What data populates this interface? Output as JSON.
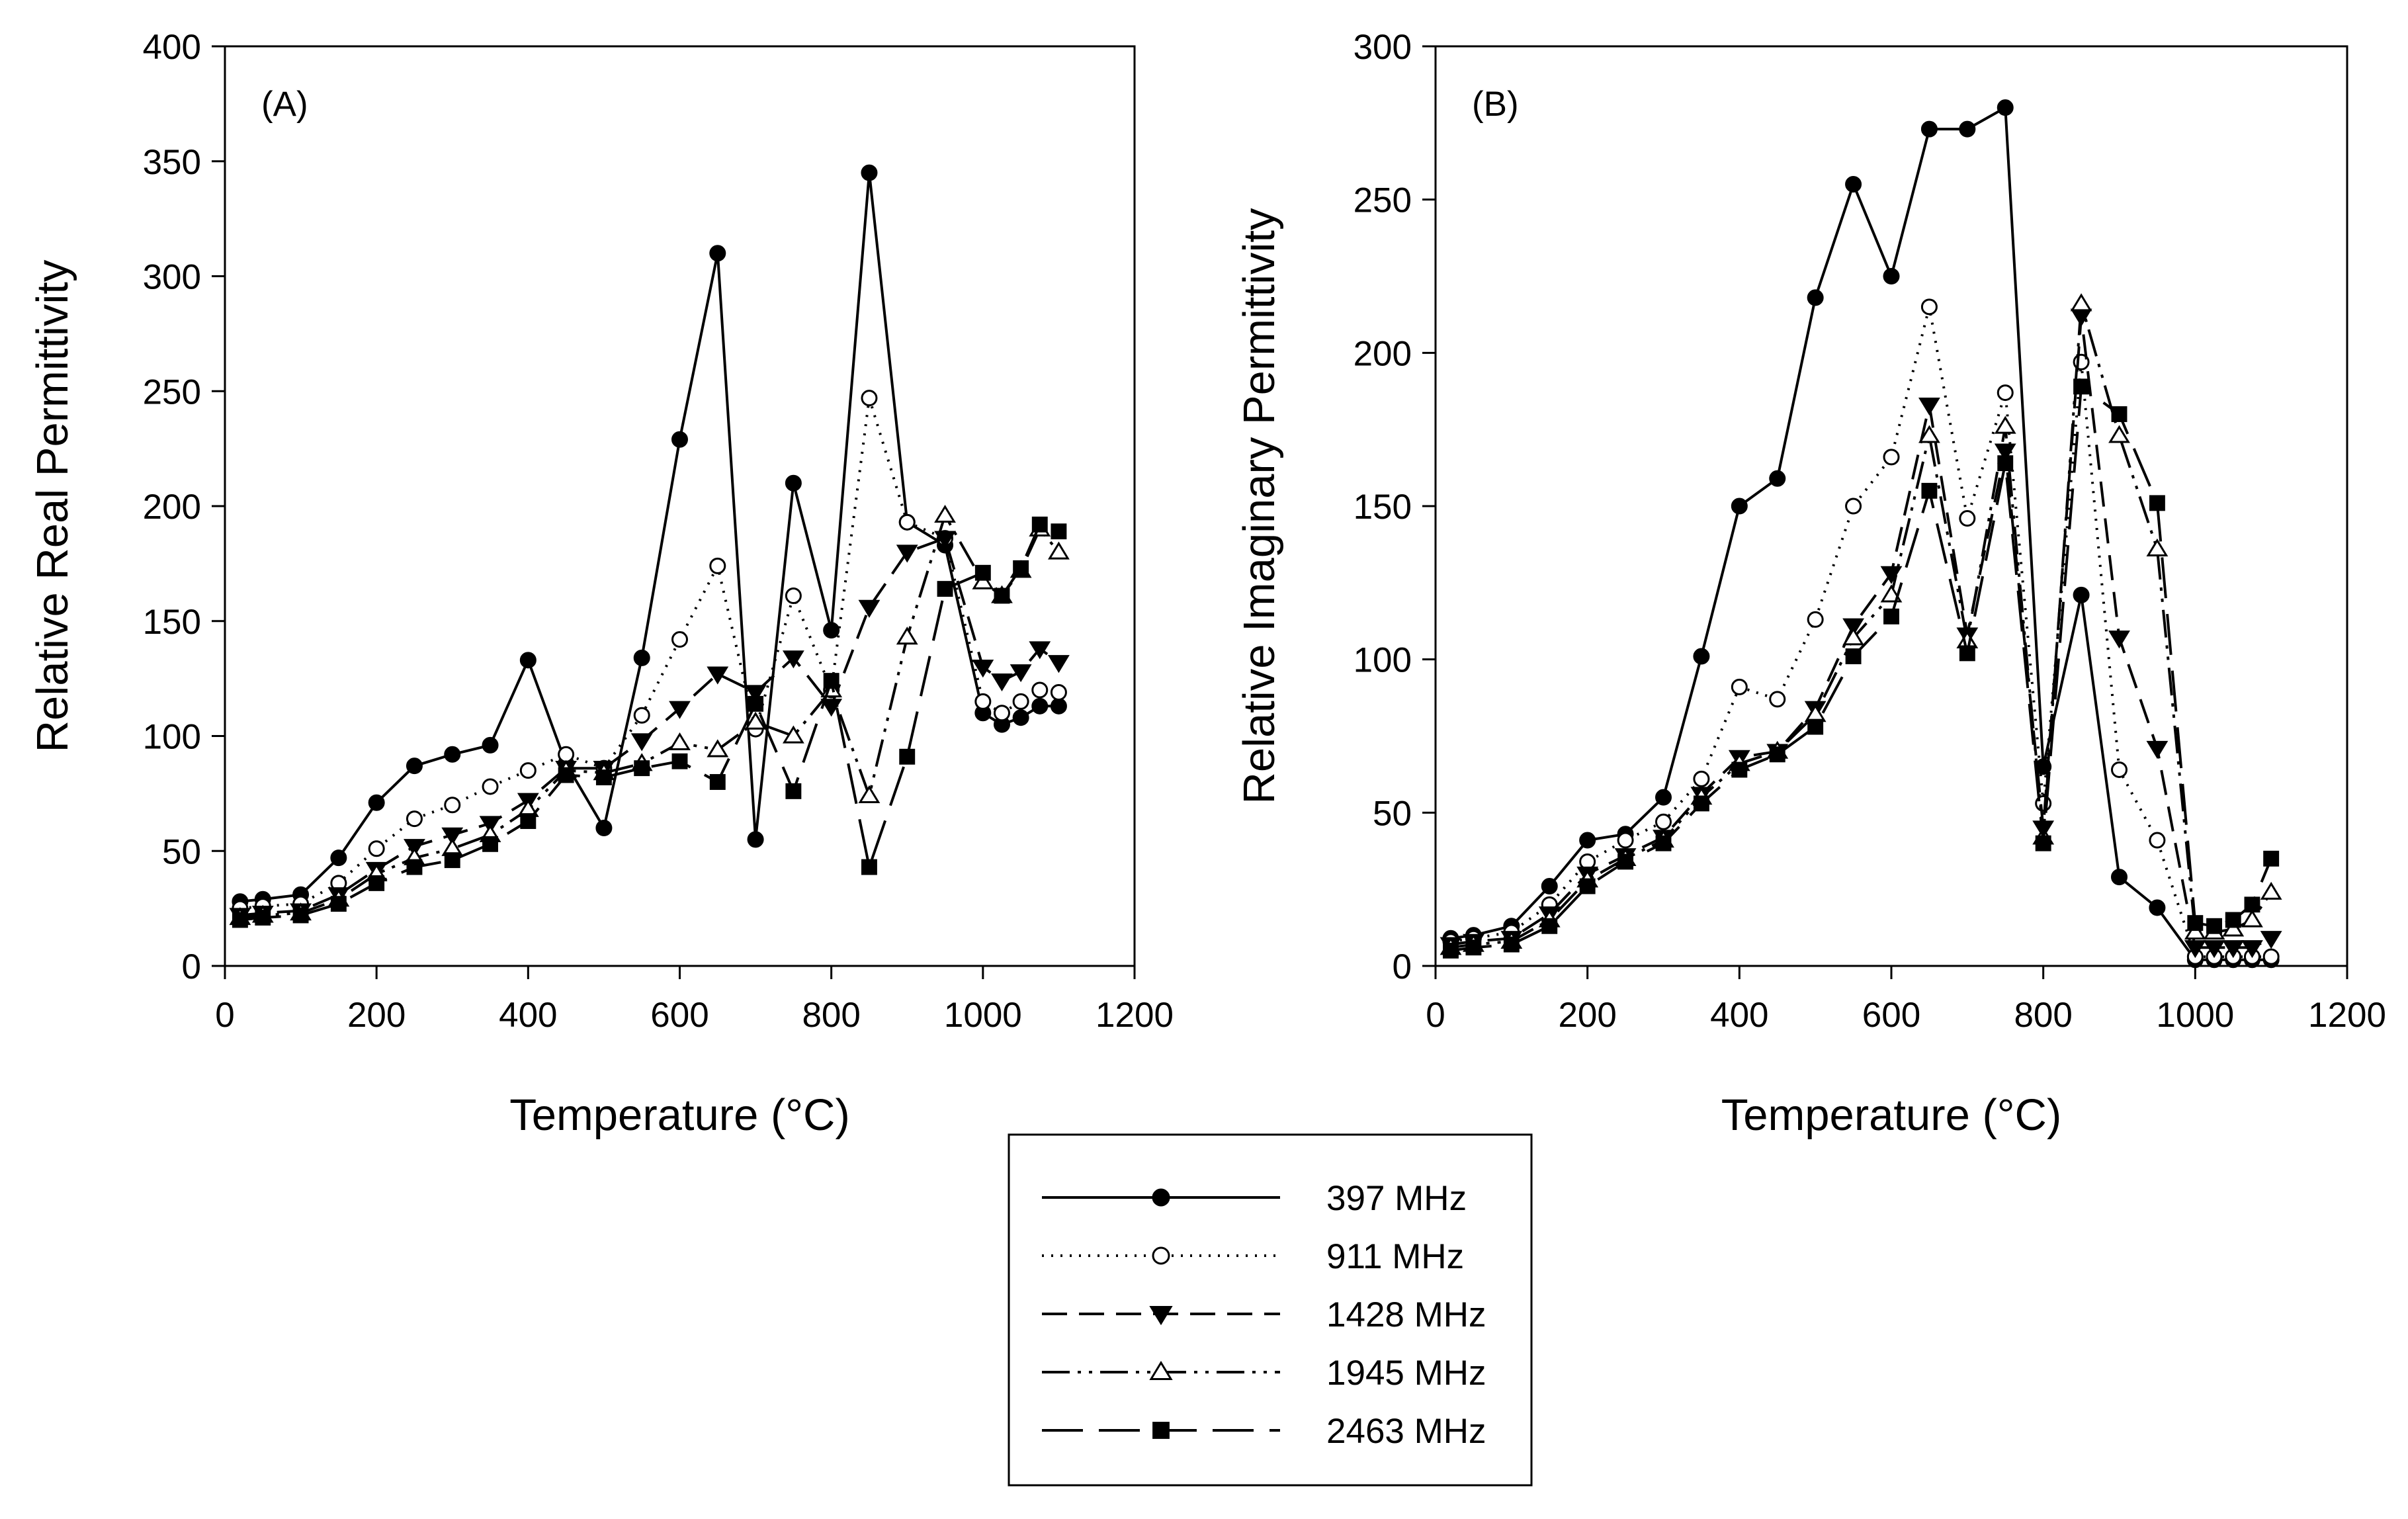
{
  "chart_data": [
    {
      "type": "line",
      "panel_label": "(A)",
      "xlabel": "Temperature (°C)",
      "ylabel": "Relative Real Permittivity",
      "xlim": [
        0,
        1200
      ],
      "ylim": [
        0,
        400
      ],
      "xticks": [
        0,
        200,
        400,
        600,
        800,
        1000,
        1200
      ],
      "yticks": [
        0,
        50,
        100,
        150,
        200,
        250,
        300,
        350,
        400
      ],
      "grid": false,
      "x": [
        20,
        50,
        100,
        150,
        200,
        250,
        300,
        350,
        400,
        450,
        500,
        550,
        600,
        650,
        700,
        750,
        800,
        850,
        900,
        950,
        1000,
        1025,
        1050,
        1075,
        1100
      ],
      "series": [
        {
          "name": "397 MHz",
          "values": [
            28,
            29,
            31,
            47,
            71,
            87,
            92,
            96,
            133,
            88,
            60,
            134,
            229,
            310,
            55,
            210,
            146,
            345,
            193,
            183,
            110,
            105,
            108,
            113,
            113
          ]
        },
        {
          "name": "911 MHz",
          "values": [
            25,
            26,
            27,
            36,
            51,
            64,
            70,
            78,
            85,
            92,
            86,
            109,
            142,
            174,
            103,
            161,
            120,
            247,
            193,
            186,
            115,
            110,
            115,
            120,
            119
          ]
        },
        {
          "name": "1428 MHz",
          "values": [
            22,
            23,
            24,
            31,
            42,
            52,
            57,
            62,
            72,
            86,
            86,
            98,
            112,
            127,
            119,
            134,
            113,
            156,
            180,
            186,
            130,
            124,
            128,
            138,
            132
          ]
        },
        {
          "name": "1945 MHz",
          "values": [
            21,
            22,
            23,
            29,
            40,
            47,
            51,
            57,
            68,
            85,
            84,
            88,
            97,
            94,
            106,
            100,
            120,
            74,
            143,
            196,
            167,
            161,
            172,
            190,
            180
          ]
        },
        {
          "name": "2463 MHz",
          "values": [
            20,
            21,
            22,
            27,
            36,
            43,
            46,
            53,
            63,
            83,
            82,
            86,
            89,
            80,
            114,
            76,
            124,
            43,
            91,
            164,
            171,
            161,
            173,
            192,
            189
          ]
        }
      ]
    },
    {
      "type": "line",
      "panel_label": "(B)",
      "xlabel": "Temperature (°C)",
      "ylabel": "Relative Imaginary Permittivity",
      "xlim": [
        0,
        1200
      ],
      "ylim": [
        0,
        300
      ],
      "xticks": [
        0,
        200,
        400,
        600,
        800,
        1000,
        1200
      ],
      "yticks": [
        0,
        50,
        100,
        150,
        200,
        250,
        300
      ],
      "grid": false,
      "x": [
        20,
        50,
        100,
        150,
        200,
        250,
        300,
        350,
        400,
        450,
        500,
        550,
        600,
        650,
        700,
        750,
        800,
        850,
        900,
        950,
        1000,
        1025,
        1050,
        1075,
        1100
      ],
      "series": [
        {
          "name": "397 MHz",
          "values": [
            9,
            10,
            13,
            26,
            41,
            43,
            55,
            101,
            150,
            159,
            218,
            255,
            225,
            273,
            273,
            280,
            65,
            121,
            29,
            19,
            2,
            2,
            2,
            2,
            2
          ]
        },
        {
          "name": "911 MHz",
          "values": [
            8,
            9,
            11,
            20,
            34,
            41,
            47,
            61,
            91,
            87,
            113,
            150,
            166,
            215,
            146,
            187,
            53,
            197,
            64,
            41,
            3,
            3,
            3,
            3,
            3
          ]
        },
        {
          "name": "1428 MHz",
          "values": [
            7,
            8,
            9,
            17,
            30,
            36,
            42,
            56,
            68,
            70,
            84,
            111,
            128,
            183,
            108,
            168,
            45,
            212,
            107,
            71,
            6,
            6,
            6,
            6,
            9
          ]
        },
        {
          "name": "1945 MHz",
          "values": [
            6,
            7,
            8,
            15,
            28,
            35,
            41,
            55,
            66,
            70,
            82,
            107,
            121,
            173,
            106,
            176,
            42,
            216,
            173,
            136,
            11,
            11,
            12,
            15,
            24
          ]
        },
        {
          "name": "2463 MHz",
          "values": [
            5,
            6,
            7,
            13,
            26,
            34,
            40,
            53,
            64,
            69,
            78,
            101,
            114,
            155,
            102,
            164,
            40,
            189,
            180,
            151,
            14,
            13,
            15,
            20,
            35
          ]
        }
      ]
    }
  ],
  "legend": {
    "placement": "bottom-center",
    "entries": [
      {
        "label": "397 MHz",
        "marker": "filled-circle",
        "line_style": "solid"
      },
      {
        "label": "911 MHz",
        "marker": "open-circle",
        "line_style": "dotted"
      },
      {
        "label": "1428 MHz",
        "marker": "filled-triangle-down",
        "line_style": "dashed"
      },
      {
        "label": "1945 MHz",
        "marker": "open-triangle-up",
        "line_style": "dash-dot-dot"
      },
      {
        "label": "2463 MHz",
        "marker": "filled-square",
        "line_style": "long-dash"
      }
    ]
  }
}
